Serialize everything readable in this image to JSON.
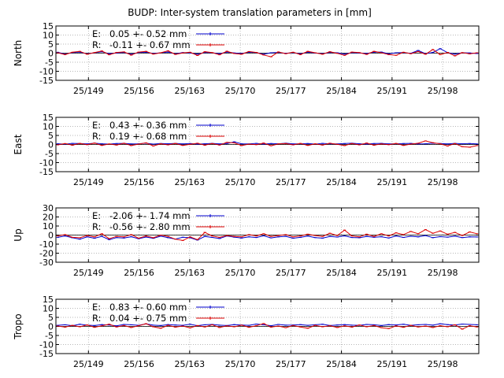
{
  "chart_data": {
    "type": "line",
    "title": "BUDP: Inter-system translation parameters in [mm]",
    "x_tick_labels": [
      "25/149",
      "25/156",
      "25/163",
      "25/170",
      "25/177",
      "25/184",
      "25/191",
      "25/198"
    ],
    "x_tick_days": [
      149,
      156,
      163,
      170,
      177,
      184,
      191,
      198
    ],
    "x_range_days": [
      144.5,
      203
    ],
    "grid": true,
    "colors": {
      "E": "#0000cc",
      "R": "#dd0000"
    },
    "panels": [
      {
        "ylabel": "North",
        "ylim": [
          -15,
          15
        ],
        "yticks": [
          15,
          10,
          5,
          0,
          -5,
          -10,
          -15
        ],
        "legend": [
          {
            "label": "E:",
            "value": "0.05 +- 0.52 mm"
          },
          {
            "label": "R:",
            "value": "-0.11 +- 0.67 mm"
          }
        ],
        "series": [
          {
            "name": "E",
            "values": [
              0.5,
              -0.5,
              0.3,
              0.6,
              -0.4,
              0.2,
              0.8,
              -0.3,
              0.1,
              0.4,
              -0.6,
              0.3,
              0.5,
              -0.2,
              0.2,
              0.6,
              -0.4,
              0.3,
              0.1,
              -0.5,
              0.4,
              0.2,
              -0.3,
              0.6,
              0.1,
              -0.2,
              0.5,
              0.3,
              -0.6,
              0.2,
              0.4,
              -0.1,
              0.3,
              -0.4,
              0.5,
              0.1,
              -0.3,
              0.4,
              0.2,
              -0.5,
              0.3,
              0.1,
              -0.2,
              0.5,
              0.6,
              -0.4,
              0.2,
              0.3,
              -0.1,
              1.5,
              -0.3,
              0.4,
              2.5,
              0.3,
              -0.5,
              0.2,
              0.1,
              -0.2
            ]
          },
          {
            "name": "R",
            "values": [
              0.2,
              -0.8,
              0.5,
              1.0,
              -0.6,
              0.3,
              1.2,
              -0.9,
              0.4,
              0.7,
              -1.1,
              0.6,
              1.0,
              -0.5,
              0.2,
              1.3,
              -0.7,
              0.1,
              0.5,
              -1.3,
              0.8,
              0.3,
              -0.9,
              1.1,
              -0.2,
              -0.6,
              0.9,
              0.4,
              -1.0,
              -2.0,
              0.7,
              -0.3,
              0.5,
              -0.8,
              1.0,
              0.2,
              -0.6,
              0.8,
              -0.1,
              -1.2,
              0.6,
              0.3,
              -0.7,
              1.0,
              0.2,
              -0.8,
              -1.2,
              0.5,
              -0.3,
              0.9,
              -0.6,
              2.0,
              -0.8,
              0.4,
              -1.5,
              0.3,
              -0.4,
              0.2
            ]
          }
        ]
      },
      {
        "ylabel": "East",
        "ylim": [
          -15,
          15
        ],
        "yticks": [
          15,
          10,
          5,
          0,
          -5,
          -10,
          -15
        ],
        "legend": [
          {
            "label": "E:",
            "value": "0.43 +- 0.36 mm"
          },
          {
            "label": "R:",
            "value": "0.19 +- 0.68 mm"
          }
        ],
        "series": [
          {
            "name": "E",
            "values": [
              0.4,
              0.2,
              0.6,
              0.5,
              0.3,
              0.7,
              0.4,
              0.2,
              0.5,
              0.6,
              0.3,
              0.4,
              0.7,
              0.2,
              0.5,
              0.4,
              0.6,
              0.3,
              0.5,
              0.2,
              0.4,
              0.6,
              0.3,
              0.5,
              1.5,
              0.4,
              0.3,
              0.6,
              0.2,
              0.5,
              0.4,
              0.7,
              0.3,
              0.4,
              0.5,
              0.2,
              0.6,
              0.4,
              0.3,
              0.5,
              0.7,
              0.4,
              0.2,
              0.5,
              0.6,
              0.3,
              0.4,
              0.5,
              0.6,
              0.3,
              0.4,
              0.7,
              0.5,
              0.3,
              0.6,
              0.4,
              0.5,
              0.3
            ]
          },
          {
            "name": "R",
            "values": [
              -0.2,
              0.5,
              -0.4,
              0.6,
              -0.1,
              0.8,
              -0.5,
              0.3,
              -0.3,
              0.7,
              -0.6,
              0.2,
              0.9,
              -0.8,
              0.4,
              -0.2,
              0.6,
              -0.5,
              0.1,
              0.7,
              -0.4,
              0.5,
              -0.3,
              1.2,
              0.9,
              -0.6,
              0.2,
              -0.1,
              0.8,
              -0.7,
              0.3,
              0.5,
              -0.2,
              0.6,
              -0.5,
              0.4,
              -0.3,
              0.7,
              0.1,
              -0.6,
              0.5,
              -0.2,
              0.8,
              -0.4,
              0.3,
              -0.1,
              0.6,
              -0.5,
              0.2,
              0.7,
              2.0,
              1.0,
              0.4,
              -0.8,
              0.5,
              -1.2,
              -1.5,
              -0.6
            ]
          }
        ]
      },
      {
        "ylabel": "Up",
        "ylim": [
          -30,
          30
        ],
        "yticks": [
          30,
          20,
          10,
          0,
          -10,
          -20,
          -30
        ],
        "legend": [
          {
            "label": "E:",
            "value": "-2.06 +- 1.74 mm"
          },
          {
            "label": "R:",
            "value": "-0.56 +- 2.80 mm"
          }
        ],
        "series": [
          {
            "name": "E",
            "values": [
              -2.5,
              -1.0,
              -3.0,
              -4.5,
              -2.0,
              -3.5,
              -1.5,
              -5.0,
              -2.8,
              -3.2,
              -1.8,
              -4.0,
              -2.2,
              -3.6,
              -1.2,
              -2.9,
              -4.4,
              -2.4,
              -3.0,
              -5.5,
              -1.5,
              -2.6,
              -3.8,
              -1.0,
              -2.3,
              -3.3,
              -1.9,
              -2.7,
              -0.8,
              -3.1,
              -2.0,
              -1.4,
              -3.5,
              -2.5,
              -1.1,
              -2.8,
              -3.4,
              -1.6,
              -2.2,
              -0.9,
              -2.7,
              -3.0,
              -1.5,
              -2.4,
              -1.8,
              -3.2,
              -1.0,
              -2.6,
              -1.3,
              -2.0,
              -0.5,
              -2.9,
              -1.7,
              -2.3,
              -1.2,
              -2.8,
              -1.9,
              -2.1
            ]
          },
          {
            "name": "R",
            "values": [
              -1.0,
              0.5,
              -2.5,
              -3.0,
              -0.5,
              -2.0,
              1.5,
              -4.0,
              -1.5,
              -2.0,
              0.5,
              -3.5,
              -1.0,
              -3.0,
              0.0,
              -1.5,
              -4.5,
              -6.0,
              -2.0,
              -5.0,
              3.0,
              -1.0,
              -2.5,
              -0.5,
              -1.5,
              -2.0,
              0.5,
              -1.0,
              1.5,
              -1.5,
              -0.5,
              0.5,
              -2.0,
              -1.0,
              1.0,
              -0.5,
              -1.5,
              2.0,
              -0.5,
              5.5,
              -1.0,
              -2.0,
              1.0,
              -1.5,
              1.5,
              -1.0,
              2.5,
              0.5,
              4.0,
              1.5,
              6.0,
              2.0,
              4.5,
              1.0,
              3.0,
              -0.5,
              3.5,
              1.5
            ]
          }
        ]
      },
      {
        "ylabel": "Tropo",
        "ylim": [
          -15,
          15
        ],
        "yticks": [
          15,
          10,
          5,
          0,
          -5,
          -10,
          -15
        ],
        "legend": [
          {
            "label": "E:",
            "value": "0.83 +- 0.60 mm"
          },
          {
            "label": "R:",
            "value": "0.04 +- 0.75 mm"
          }
        ],
        "series": [
          {
            "name": "E",
            "values": [
              0.6,
              0.9,
              0.4,
              1.2,
              0.7,
              0.5,
              1.0,
              0.8,
              0.3,
              1.1,
              0.9,
              0.6,
              1.4,
              0.7,
              0.5,
              1.0,
              0.8,
              0.6,
              1.2,
              0.4,
              0.9,
              1.1,
              0.7,
              0.5,
              1.0,
              0.8,
              0.6,
              1.3,
              0.9,
              0.4,
              1.1,
              0.7,
              0.8,
              1.0,
              0.6,
              0.9,
              1.2,
              0.5,
              0.8,
              1.0,
              0.7,
              0.6,
              1.1,
              0.9,
              0.5,
              1.0,
              0.8,
              1.2,
              0.6,
              0.9,
              1.1,
              0.7,
              1.5,
              1.0,
              0.8,
              1.3,
              1.1,
              0.9
            ]
          },
          {
            "name": "R",
            "values": [
              0.2,
              -0.4,
              0.6,
              -0.2,
              0.8,
              -0.5,
              0.3,
              1.2,
              -0.3,
              0.5,
              -0.6,
              0.4,
              1.5,
              -0.2,
              -1.0,
              0.6,
              -0.4,
              0.2,
              -0.8,
              0.5,
              -0.3,
              0.9,
              -0.6,
              0.3,
              -0.2,
              0.7,
              -0.5,
              0.4,
              1.6,
              -0.4,
              0.2,
              -0.7,
              0.5,
              -0.3,
              -1.0,
              0.6,
              -0.2,
              0.4,
              -0.6,
              0.3,
              -0.4,
              0.8,
              -0.2,
              0.5,
              -0.7,
              -1.2,
              0.3,
              -0.5,
              0.6,
              -0.3,
              0.2,
              -0.6,
              0.4,
              -0.2,
              0.9,
              -1.5,
              0.4,
              -0.3
            ]
          }
        ]
      }
    ]
  }
}
